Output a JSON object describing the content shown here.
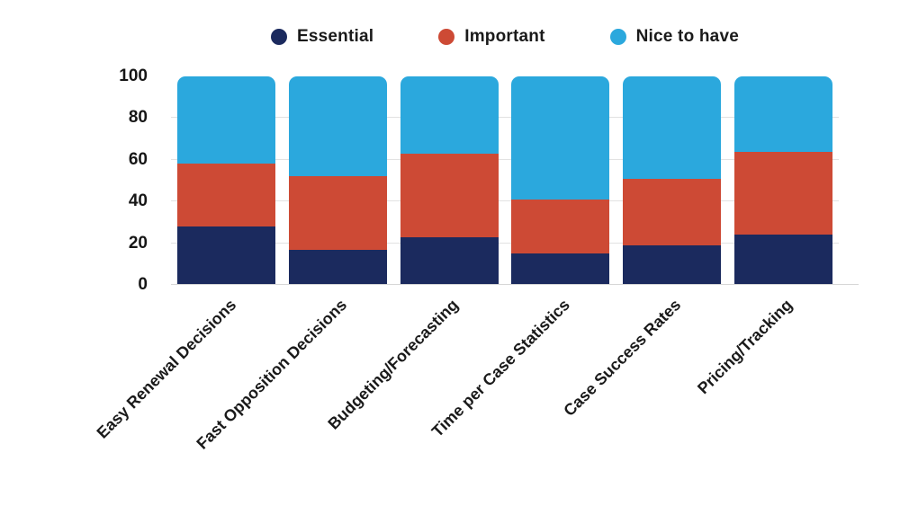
{
  "chart_data": {
    "type": "bar",
    "stacked": true,
    "percent_stacked": true,
    "title": "",
    "xlabel": "",
    "ylabel": "",
    "categories": [
      "Easy Renewal Decisions",
      "Fast Opposition Decisions",
      "Budgeting/Forecasting",
      "Time per Case Statistics",
      "Case Success Rates",
      "Pricing/Tracking"
    ],
    "series": [
      {
        "name": "Essential",
        "color": "#1b2a5e",
        "values": [
          28,
          17,
          23,
          15,
          19,
          24
        ]
      },
      {
        "name": "Important",
        "color": "#cd4a35",
        "values": [
          30,
          35,
          40,
          26,
          32,
          40
        ]
      },
      {
        "name": "Nice to have",
        "color": "#2ba8dd",
        "values": [
          42,
          48,
          37,
          59,
          49,
          36
        ]
      }
    ],
    "ylim": [
      0,
      100
    ],
    "yticks": [
      0,
      20,
      40,
      60,
      80,
      100
    ],
    "legend_position": "top",
    "grid": true,
    "gridline_color": "#e2e2e2",
    "text_color": "#1a1a1a",
    "background_color": "#ffffff"
  }
}
